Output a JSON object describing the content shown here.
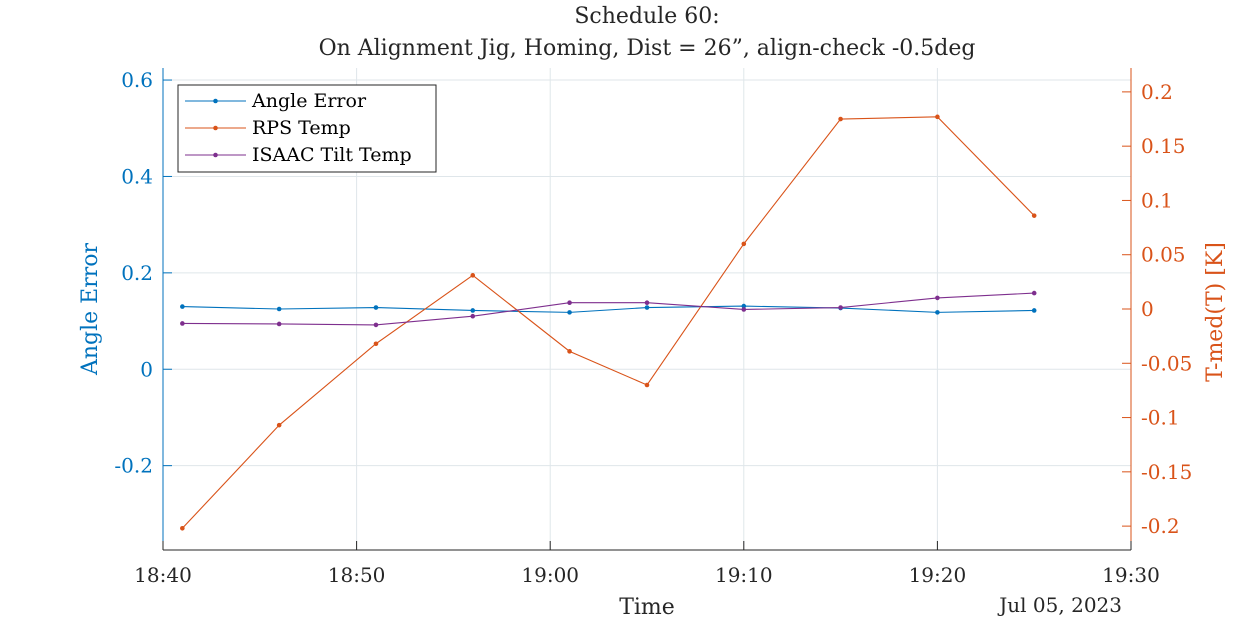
{
  "chart_data": {
    "type": "line",
    "title_line1": "Schedule 60:",
    "title_line2": "On Alignment Jig, Homing, Dist = 26”, align-check -0.5deg",
    "xlabel": "Time",
    "date_label": "Jul 05, 2023",
    "x": [
      "18:41",
      "18:46",
      "18:51",
      "18:56",
      "19:01",
      "19:05",
      "19:10",
      "19:15",
      "19:20",
      "19:25"
    ],
    "x_ticks": [
      "18:40",
      "18:50",
      "19:00",
      "19:10",
      "19:20",
      "19:30"
    ],
    "xlim": [
      "18:40",
      "19:30"
    ],
    "grid": true,
    "legend_position": "top-left",
    "y_left": {
      "label": "Angle Error",
      "ylim": [
        -0.375,
        0.625
      ],
      "ticks": [
        "-0.2",
        "0",
        "0.2",
        "0.4",
        "0.6"
      ],
      "color": "#0072BD"
    },
    "y_right": {
      "label": "T-med(T) [K]",
      "ylim": [
        -0.222,
        0.222
      ],
      "ticks": [
        "-0.2",
        "-0.15",
        "-0.1",
        "-0.05",
        "0",
        "0.05",
        "0.1",
        "0.15",
        "0.2"
      ],
      "color": "#D95319"
    },
    "series": [
      {
        "name": "Angle Error",
        "axis": "left",
        "color": "#0072BD",
        "values": [
          0.13,
          0.125,
          0.128,
          0.122,
          0.118,
          0.128,
          0.131,
          0.127,
          0.118,
          0.122
        ]
      },
      {
        "name": "RPS Temp",
        "axis": "right",
        "color": "#D95319",
        "values": [
          -0.202,
          -0.107,
          -0.032,
          0.031,
          -0.039,
          -0.07,
          0.06,
          0.175,
          0.177,
          0.086
        ]
      },
      {
        "name": "ISAAC Tilt Temp",
        "axis": "left",
        "color": "#7E2F8E",
        "values": [
          0.095,
          0.094,
          0.092,
          0.11,
          0.138,
          0.138,
          0.124,
          0.128,
          0.148,
          0.158
        ]
      }
    ]
  }
}
